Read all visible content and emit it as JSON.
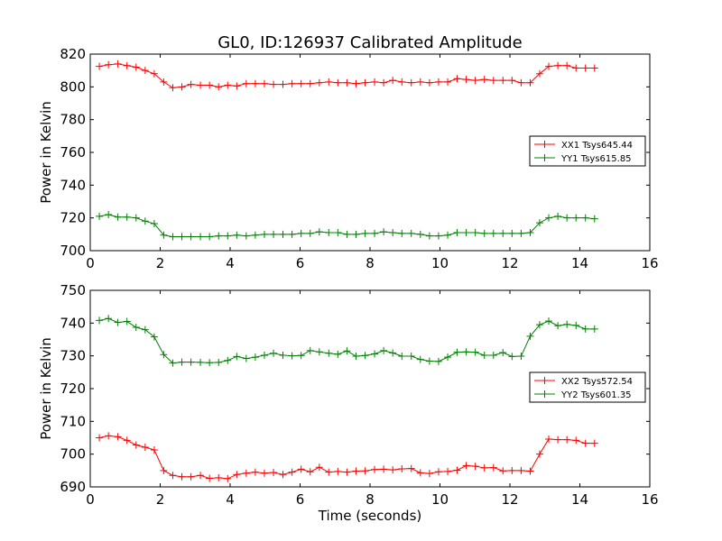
{
  "figure": {
    "title": "GL0, ID:126937 Calibrated Amplitude",
    "xlabel": "Time (seconds)"
  },
  "chart_data": [
    {
      "type": "line",
      "title": "GL0, ID:126937 Calibrated Amplitude",
      "xlabel": "",
      "ylabel": "Power in Kelvin",
      "xlim": [
        0,
        16
      ],
      "ylim": [
        700,
        820
      ],
      "xticks": [
        0,
        2,
        4,
        6,
        8,
        10,
        12,
        14,
        16
      ],
      "yticks": [
        700,
        720,
        740,
        760,
        780,
        800,
        820
      ],
      "grid": false,
      "legend_position": "center-right",
      "x": [
        0.26,
        0.52,
        0.79,
        1.05,
        1.31,
        1.57,
        1.83,
        2.1,
        2.36,
        2.62,
        2.88,
        3.15,
        3.41,
        3.67,
        3.93,
        4.19,
        4.46,
        4.72,
        4.98,
        5.24,
        5.51,
        5.77,
        6.03,
        6.29,
        6.55,
        6.82,
        7.08,
        7.34,
        7.6,
        7.86,
        8.13,
        8.39,
        8.65,
        8.91,
        9.18,
        9.44,
        9.7,
        9.96,
        10.22,
        10.49,
        10.75,
        11.01,
        11.27,
        11.53,
        11.8,
        12.06,
        12.32,
        12.58,
        12.85,
        13.11,
        13.37,
        13.63,
        13.89,
        14.16,
        14.42
      ],
      "series": [
        {
          "name": "XX1 Tsys645.44",
          "color": "#ff0000",
          "values": [
            812.5,
            813.5,
            814,
            813,
            812,
            810,
            808,
            803,
            799.5,
            800,
            801.5,
            801,
            801,
            800,
            801,
            800.5,
            802,
            802,
            802,
            801.5,
            801.5,
            802,
            802,
            802,
            802.5,
            803,
            802.5,
            802.5,
            802,
            802.5,
            803,
            802.5,
            804,
            803,
            802.5,
            803,
            802.5,
            803,
            803,
            805,
            804.5,
            804,
            804.5,
            804,
            804,
            804,
            802.5,
            802.5,
            808,
            812.5,
            813,
            813,
            811.5,
            811.5,
            811.5
          ]
        },
        {
          "name": "YY1 Tsys615.85",
          "color": "#008000",
          "values": [
            721,
            722,
            720.5,
            720.5,
            720,
            718,
            716.5,
            709.5,
            708.5,
            708.5,
            708.5,
            708.5,
            708.5,
            709,
            709,
            709.5,
            709,
            709.5,
            710,
            710,
            710,
            710,
            710.5,
            710.5,
            711.5,
            711,
            711,
            710,
            710,
            710.5,
            710.5,
            711.5,
            711,
            710.5,
            710.5,
            710,
            709,
            709,
            709.5,
            711,
            711,
            711,
            710.5,
            710.5,
            710.5,
            710.5,
            710.5,
            711,
            717,
            720,
            721,
            720,
            720,
            720,
            719.5
          ]
        }
      ]
    },
    {
      "type": "line",
      "title": "",
      "xlabel": "Time (seconds)",
      "ylabel": "Power in Kelvin",
      "xlim": [
        0,
        16
      ],
      "ylim": [
        690,
        750
      ],
      "xticks": [
        0,
        2,
        4,
        6,
        8,
        10,
        12,
        14,
        16
      ],
      "yticks": [
        690,
        700,
        710,
        720,
        730,
        740,
        750
      ],
      "grid": false,
      "legend_position": "center-right",
      "x": [
        0.26,
        0.52,
        0.79,
        1.05,
        1.31,
        1.57,
        1.83,
        2.1,
        2.36,
        2.62,
        2.88,
        3.15,
        3.41,
        3.67,
        3.93,
        4.19,
        4.46,
        4.72,
        4.98,
        5.24,
        5.51,
        5.77,
        6.03,
        6.29,
        6.55,
        6.82,
        7.08,
        7.34,
        7.6,
        7.86,
        8.13,
        8.39,
        8.65,
        8.91,
        9.18,
        9.44,
        9.7,
        9.96,
        10.22,
        10.49,
        10.75,
        11.01,
        11.27,
        11.53,
        11.8,
        12.06,
        12.32,
        12.58,
        12.85,
        13.11,
        13.37,
        13.63,
        13.89,
        14.16,
        14.42
      ],
      "series": [
        {
          "name": "XX2 Tsys572.54",
          "color": "#ff0000",
          "values": [
            705,
            705.6,
            705.3,
            704.2,
            702.8,
            702.1,
            701.3,
            695,
            693.5,
            693.1,
            693.1,
            693.5,
            692.6,
            692.8,
            692.5,
            693.8,
            694.2,
            694.5,
            694.2,
            694.4,
            693.8,
            694.5,
            695.4,
            694.6,
            696,
            694.5,
            694.7,
            694.5,
            694.8,
            694.9,
            695.3,
            695.4,
            695.2,
            695.5,
            695.6,
            694.3,
            694.1,
            694.6,
            694.7,
            695.1,
            696.5,
            696.3,
            695.8,
            695.9,
            694.9,
            695,
            695,
            694.8,
            700,
            704.6,
            704.4,
            704.4,
            704.2,
            703.3,
            703.3
          ]
        },
        {
          "name": "YY2 Tsys601.35",
          "color": "#008000",
          "values": [
            740.8,
            741.4,
            740.2,
            740.5,
            738.7,
            738,
            735.8,
            730.4,
            727.8,
            728.1,
            728.1,
            728,
            727.9,
            728,
            728.6,
            729.8,
            729.2,
            729.6,
            730.2,
            730.8,
            730.2,
            730,
            730.1,
            731.6,
            731.2,
            730.8,
            730.5,
            731.5,
            729.9,
            730.1,
            730.6,
            731.6,
            730.9,
            729.9,
            729.9,
            728.9,
            728.4,
            728.3,
            729.6,
            731.1,
            731.2,
            731.1,
            730.2,
            730.2,
            731,
            729.8,
            729.9,
            736,
            739.5,
            740.6,
            739.2,
            739.6,
            739.3,
            738.2,
            738.2
          ]
        }
      ]
    }
  ]
}
